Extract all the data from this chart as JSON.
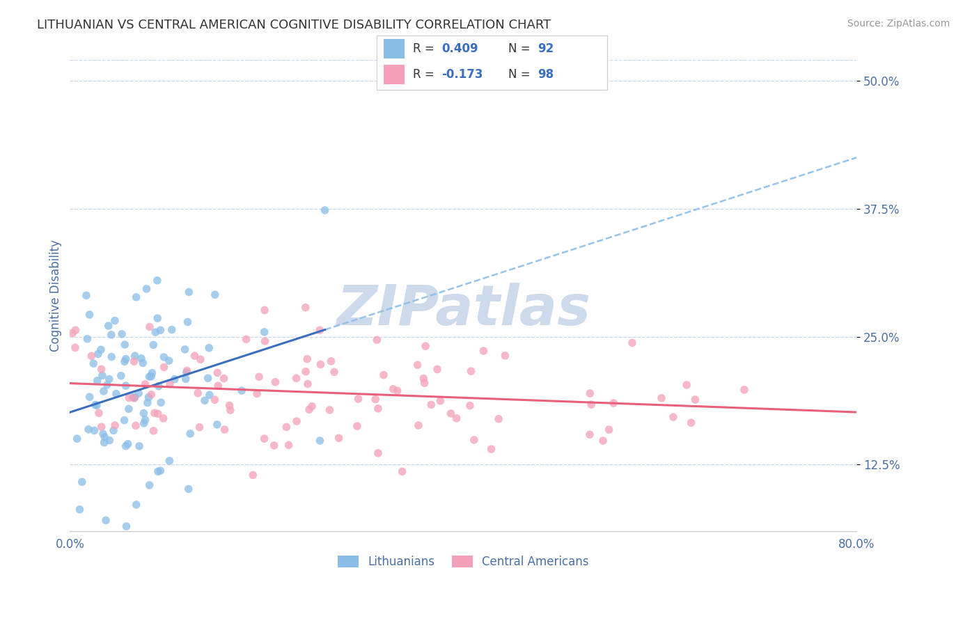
{
  "title": "LITHUANIAN VS CENTRAL AMERICAN COGNITIVE DISABILITY CORRELATION CHART",
  "source_text": "Source: ZipAtlas.com",
  "ylabel": "Cognitive Disability",
  "xlim": [
    0.0,
    0.8
  ],
  "ylim": [
    0.06,
    0.52
  ],
  "ytick_positions": [
    0.125,
    0.25,
    0.375,
    0.5
  ],
  "ytick_labels": [
    "12.5%",
    "25.0%",
    "37.5%",
    "50.0%"
  ],
  "series1_name": "Lithuanians",
  "series1_color": "#8abde8",
  "series1_line_color": "#3a6fbf",
  "series1_R": 0.409,
  "series1_N": 92,
  "series2_name": "Central Americans",
  "series2_color": "#f4a0b8",
  "series2_line_color": "#e8607a",
  "series2_R": -0.173,
  "series2_N": 98,
  "background_color": "#ffffff",
  "grid_color": "#c8d8e8",
  "watermark_color": "#ccdaeb",
  "title_fontsize": 13,
  "tick_label_color": "#4a6fa5",
  "seed1": 42,
  "seed2": 77,
  "dot_size": 70,
  "dot_alpha": 0.75
}
